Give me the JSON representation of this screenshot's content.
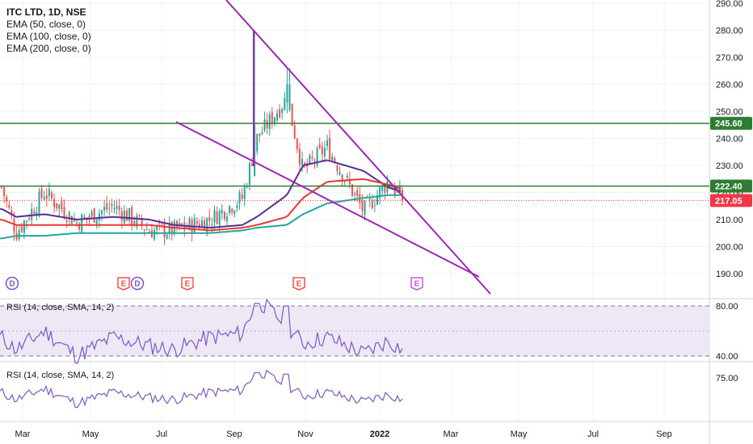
{
  "legend": {
    "symbol": "ITC LTD, 1D, NSE",
    "ema50": "EMA (50, close, 0)",
    "ema100": "EMA (100, close, 0)",
    "ema200": "EMA (200, close, 0)"
  },
  "rsi_panes": [
    {
      "label": "RSI (14, close, SMA, 14, 2)",
      "ticks": [
        "80.00",
        "40.00"
      ]
    },
    {
      "label": "RSI (14, close, SMA, 14, 2)",
      "ticks": [
        "75.00"
      ]
    }
  ],
  "colors": {
    "up": "#26a69a",
    "down": "#ef5350",
    "ema50": "#5b2c91",
    "ema100": "#e53935",
    "ema200": "#26a69a",
    "trendline": "#9c27b0",
    "hline": "#2e7d32",
    "last_price": "#f23645",
    "rsi_line": "#7e57c2",
    "rsi_band": "#ede7f6"
  },
  "chart_data": {
    "type": "candlestick",
    "title": "ITC LTD, 1D, NSE",
    "price_axis": {
      "ylim": [
        185,
        292
      ],
      "ticks": [
        190,
        200,
        210,
        220,
        230,
        240,
        250,
        260,
        270,
        280,
        290
      ],
      "tick_labels": [
        "190.00",
        "200.00",
        "210.00",
        "220.00",
        "230.00",
        "240.00",
        "250.00",
        "260.00",
        "270.00",
        "280.00",
        "290.00"
      ]
    },
    "x_axis": {
      "ticks": [
        "Mar",
        "May",
        "Jul",
        "Sep",
        "Nov",
        "2022",
        "Mar",
        "May",
        "Jul",
        "Sep"
      ]
    },
    "horizontal_lines": [
      {
        "value": 245.6,
        "label": "245.60",
        "color": "#2e7d32"
      },
      {
        "value": 222.4,
        "label": "222.40",
        "color": "#2e7d32"
      }
    ],
    "last_price": {
      "value": 217.05,
      "label": "217.05"
    },
    "close_anchors": [
      {
        "month": "Feb 2021",
        "value": 222
      },
      {
        "month": "Mar 2021",
        "value": 205
      },
      {
        "month": "Mar 2021 (late)",
        "value": 220
      },
      {
        "month": "Apr 2021",
        "value": 209
      },
      {
        "month": "May 2021",
        "value": 215
      },
      {
        "month": "Jun 2021",
        "value": 206
      },
      {
        "month": "Jul 2021",
        "value": 206
      },
      {
        "month": "Aug 2021",
        "value": 210
      },
      {
        "month": "early Sep 2021",
        "value": 218
      },
      {
        "month": "mid Sep 2021",
        "value": 240
      },
      {
        "month": "Oct 2021",
        "value": 255
      },
      {
        "month": "late Oct 2021",
        "value": 228
      },
      {
        "month": "Nov 2021",
        "value": 237
      },
      {
        "month": "Dec 2021",
        "value": 213
      },
      {
        "month": "Jan 2022",
        "value": 224
      },
      {
        "month": "late Jan 2022",
        "value": 217.05
      }
    ],
    "emas": [
      {
        "name": "EMA (50, close, 0)",
        "approx": [
          214,
          211,
          212,
          210,
          211,
          210,
          208,
          207,
          208,
          211,
          219,
          230,
          232,
          228,
          222,
          220
        ]
      },
      {
        "name": "EMA (100, close, 0)",
        "approx": [
          210,
          208,
          208,
          208,
          208,
          208,
          207,
          206,
          207,
          208,
          211,
          218,
          224,
          225,
          223,
          221
        ]
      },
      {
        "name": "EMA (200, close, 0)",
        "approx": [
          203,
          204,
          204,
          205,
          205,
          205,
          205,
          205,
          206,
          207,
          208,
          212,
          216,
          218,
          219,
          219
        ]
      }
    ],
    "events": [
      {
        "label": "D",
        "month": "Feb 2021"
      },
      {
        "label": "E",
        "month": "May 2021"
      },
      {
        "label": "D",
        "month": "May 2021"
      },
      {
        "label": "E",
        "month": "Jun 2021"
      },
      {
        "label": "E",
        "month": "Oct 2021"
      },
      {
        "label": "E",
        "month": "Feb 2022"
      }
    ],
    "trendlines": [
      {
        "from": [
          "Aug 2021",
          292
        ],
        "to": [
          "Apr 2022",
          184
        ]
      },
      {
        "from": [
          "Jun 2021",
          246
        ],
        "to": [
          "Apr 2022",
          189
        ]
      }
    ],
    "rsi": {
      "upper": 80,
      "lower": 40,
      "mid": 60,
      "approx": [
        55,
        45,
        60,
        40,
        55,
        48,
        45,
        55,
        58,
        85,
        65,
        50,
        55,
        42,
        52,
        45
      ]
    }
  }
}
